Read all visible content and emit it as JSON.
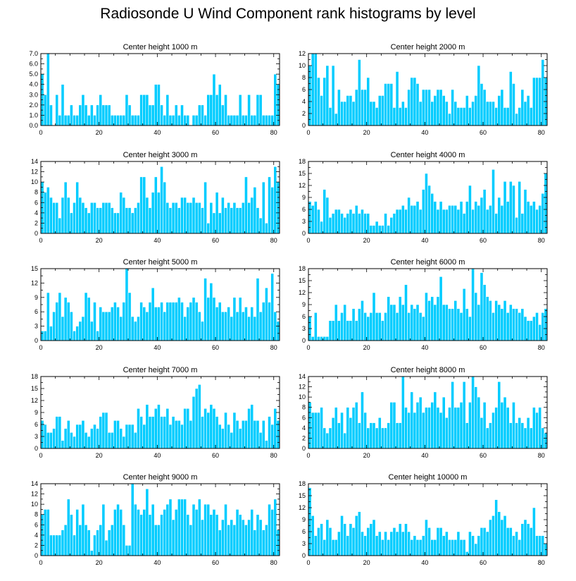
{
  "figure_title": "Radiosonde U Wind Component rank histograms by level",
  "colors": {
    "bar": "#00ccff",
    "axis": "#000000",
    "background": "#ffffff"
  },
  "chart_data": [
    {
      "type": "bar",
      "title": "Center height 1000 m",
      "xlim": [
        0,
        82
      ],
      "ylim": [
        0,
        7
      ],
      "xticks": [
        "0",
        "20",
        "40",
        "60",
        "80"
      ],
      "yticks": [
        "0.0",
        "1.0",
        "2.0",
        "3.0",
        "4.0",
        "5.0",
        "6.0",
        "7.0"
      ],
      "ytick_values": [
        0,
        1,
        2,
        3,
        4,
        5,
        6,
        7
      ],
      "values": [
        5,
        3,
        7,
        2,
        0,
        3,
        1,
        4,
        1,
        1,
        2,
        1,
        1,
        2,
        3,
        2,
        1,
        2,
        1,
        2,
        3,
        2,
        2,
        2,
        1,
        1,
        1,
        1,
        1,
        3,
        2,
        1,
        1,
        1,
        3,
        3,
        3,
        2,
        2,
        4,
        4,
        2,
        1,
        3,
        1,
        1,
        2,
        1,
        2,
        1,
        1,
        0,
        1,
        1,
        2,
        2,
        1,
        3,
        3,
        5,
        3,
        4,
        2,
        3,
        1,
        1,
        1,
        1,
        3,
        1,
        1,
        3,
        1,
        1,
        3,
        3,
        1,
        1,
        1,
        1,
        5,
        4
      ]
    },
    {
      "type": "bar",
      "title": "Center height 2000 m",
      "xlim": [
        0,
        82
      ],
      "ylim": [
        0,
        12
      ],
      "xticks": [
        "0",
        "20",
        "40",
        "60",
        "80"
      ],
      "yticks": [
        "0",
        "2",
        "4",
        "6",
        "8",
        "10",
        "12"
      ],
      "ytick_values": [
        0,
        2,
        4,
        6,
        8,
        10,
        12
      ],
      "values": [
        10,
        12,
        12,
        8,
        5,
        8,
        10,
        3,
        10,
        2,
        6,
        4,
        4,
        5,
        5,
        4,
        6,
        11,
        6,
        6,
        8,
        4,
        4,
        3,
        5,
        5,
        7,
        7,
        7,
        3,
        9,
        3,
        4,
        3,
        6,
        8,
        8,
        7,
        4,
        6,
        6,
        6,
        4,
        5,
        6,
        6,
        5,
        4,
        2,
        6,
        4,
        3,
        3,
        3,
        5,
        3,
        4,
        5,
        10,
        7,
        6,
        4,
        4,
        4,
        3,
        5,
        6,
        3,
        3,
        9,
        7,
        2,
        3,
        6,
        4,
        5,
        3,
        8,
        8,
        8,
        11,
        8
      ]
    },
    {
      "type": "bar",
      "title": "Center height 3000 m",
      "xlim": [
        0,
        82
      ],
      "ylim": [
        0,
        14
      ],
      "xticks": [
        "0",
        "20",
        "40",
        "60",
        "80"
      ],
      "yticks": [
        "0",
        "2",
        "4",
        "6",
        "8",
        "10",
        "12",
        "14"
      ],
      "ytick_values": [
        0,
        2,
        4,
        6,
        8,
        10,
        12,
        14
      ],
      "values": [
        10,
        8,
        9,
        7,
        6,
        6,
        3,
        7,
        10,
        7,
        4,
        6,
        10,
        7,
        6,
        5,
        4,
        6,
        6,
        5,
        5,
        6,
        6,
        6,
        5,
        4,
        4,
        8,
        7,
        5,
        5,
        4,
        5,
        6,
        11,
        11,
        7,
        5,
        8,
        11,
        8,
        13,
        10,
        6,
        5,
        6,
        6,
        5,
        7,
        7,
        6,
        6,
        7,
        6,
        6,
        5,
        10,
        2,
        6,
        4,
        8,
        4,
        7,
        5,
        6,
        5,
        6,
        5,
        5,
        6,
        11,
        6,
        7,
        9,
        5,
        3,
        10,
        2,
        11,
        9,
        13,
        10
      ]
    },
    {
      "type": "bar",
      "title": "Center height 4000 m",
      "xlim": [
        0,
        82
      ],
      "ylim": [
        0,
        18
      ],
      "xticks": [
        "0",
        "20",
        "40",
        "60",
        "80"
      ],
      "yticks": [
        "0",
        "3",
        "6",
        "9",
        "12",
        "15",
        "18"
      ],
      "ytick_values": [
        0,
        3,
        6,
        9,
        12,
        15,
        18
      ],
      "values": [
        8,
        7,
        8,
        6,
        3,
        11,
        9,
        4,
        5,
        6,
        6,
        5,
        4,
        5,
        6,
        5,
        7,
        5,
        6,
        5,
        5,
        2,
        2,
        3,
        2,
        2,
        5,
        2,
        4,
        5,
        6,
        6,
        7,
        6,
        9,
        7,
        7,
        8,
        6,
        11,
        15,
        12,
        10,
        8,
        6,
        8,
        6,
        6,
        7,
        7,
        7,
        6,
        8,
        5,
        8,
        12,
        6,
        8,
        7,
        9,
        11,
        6,
        7,
        16,
        5,
        9,
        7,
        13,
        8,
        13,
        12,
        4,
        13,
        5,
        11,
        8,
        7,
        8,
        6,
        7,
        10,
        15
      ]
    },
    {
      "type": "bar",
      "title": "Center height 5000 m",
      "xlim": [
        0,
        82
      ],
      "ylim": [
        0,
        15
      ],
      "xticks": [
        "0",
        "20",
        "40",
        "60",
        "80"
      ],
      "yticks": [
        "0",
        "3",
        "6",
        "9",
        "12",
        "15"
      ],
      "ytick_values": [
        0,
        3,
        6,
        9,
        12,
        15
      ],
      "values": [
        2,
        2,
        10,
        3,
        6,
        8,
        10,
        5,
        9,
        8,
        6,
        2,
        3,
        4,
        5,
        10,
        9,
        4,
        8,
        2,
        7,
        6,
        6,
        6,
        7,
        8,
        7,
        5,
        8,
        15,
        10,
        5,
        4,
        5,
        8,
        7,
        6,
        8,
        11,
        7,
        7,
        8,
        6,
        8,
        8,
        8,
        8,
        9,
        8,
        5,
        7,
        8,
        9,
        8,
        6,
        4,
        13,
        9,
        12,
        9,
        7,
        8,
        6,
        6,
        7,
        5,
        9,
        6,
        9,
        6,
        7,
        5,
        7,
        5,
        13,
        6,
        8,
        11,
        8,
        14,
        6,
        4
      ]
    },
    {
      "type": "bar",
      "title": "Center height 6000 m",
      "xlim": [
        0,
        82
      ],
      "ylim": [
        0,
        18
      ],
      "xticks": [
        "0",
        "20",
        "40",
        "60",
        "80"
      ],
      "yticks": [
        "0",
        "3",
        "6",
        "9",
        "12",
        "15",
        "18"
      ],
      "ytick_values": [
        0,
        3,
        6,
        9,
        12,
        15,
        18
      ],
      "values": [
        6,
        1,
        7,
        1,
        1,
        1,
        1,
        5,
        5,
        9,
        5,
        7,
        9,
        5,
        5,
        8,
        5,
        8,
        10,
        7,
        6,
        7,
        12,
        7,
        7,
        5,
        7,
        11,
        9,
        9,
        7,
        11,
        9,
        14,
        7,
        9,
        8,
        9,
        7,
        6,
        12,
        10,
        11,
        9,
        11,
        16,
        9,
        9,
        8,
        8,
        10,
        8,
        7,
        13,
        8,
        6,
        18,
        12,
        9,
        17,
        14,
        11,
        10,
        7,
        10,
        9,
        8,
        10,
        7,
        9,
        8,
        8,
        7,
        8,
        6,
        5,
        5,
        6,
        7,
        4,
        7,
        8
      ]
    },
    {
      "type": "bar",
      "title": "Center height 7000 m",
      "xlim": [
        0,
        82
      ],
      "ylim": [
        0,
        18
      ],
      "xticks": [
        "0",
        "20",
        "40",
        "60",
        "80"
      ],
      "yticks": [
        "0",
        "3",
        "6",
        "9",
        "12",
        "15",
        "18"
      ],
      "ytick_values": [
        0,
        3,
        6,
        9,
        12,
        15,
        18
      ],
      "values": [
        7,
        6,
        4,
        4,
        5,
        8,
        8,
        2,
        5,
        7,
        4,
        3,
        6,
        6,
        7,
        4,
        3,
        5,
        6,
        5,
        8,
        9,
        9,
        4,
        4,
        7,
        7,
        5,
        3,
        6,
        6,
        6,
        4,
        10,
        8,
        6,
        11,
        8,
        8,
        10,
        11,
        8,
        8,
        10,
        6,
        8,
        7,
        7,
        6,
        10,
        10,
        7,
        13,
        15,
        16,
        8,
        10,
        9,
        11,
        10,
        8,
        6,
        5,
        9,
        6,
        4,
        9,
        7,
        5,
        7,
        7,
        10,
        11,
        7,
        7,
        4,
        7,
        2,
        8,
        6,
        10,
        7
      ]
    },
    {
      "type": "bar",
      "title": "Center height 8000 m",
      "xlim": [
        0,
        82
      ],
      "ylim": [
        0,
        14
      ],
      "xticks": [
        "0",
        "20",
        "40",
        "60",
        "80"
      ],
      "yticks": [
        "0",
        "2",
        "4",
        "6",
        "8",
        "10",
        "12",
        "14"
      ],
      "ytick_values": [
        0,
        2,
        4,
        6,
        8,
        10,
        12,
        14
      ],
      "values": [
        9,
        7,
        7,
        7,
        8,
        4,
        3,
        4,
        6,
        8,
        5,
        7,
        3,
        8,
        6,
        8,
        9,
        5,
        11,
        7,
        4,
        5,
        5,
        4,
        6,
        4,
        4,
        5,
        9,
        9,
        5,
        5,
        14,
        8,
        7,
        11,
        7,
        9,
        10,
        7,
        8,
        8,
        9,
        11,
        8,
        7,
        10,
        6,
        8,
        13,
        8,
        8,
        9,
        13,
        5,
        9,
        14,
        12,
        10,
        6,
        9,
        4,
        5,
        7,
        8,
        13,
        9,
        10,
        8,
        5,
        9,
        5,
        6,
        5,
        4,
        6,
        4,
        8,
        7,
        8,
        4,
        3
      ]
    },
    {
      "type": "bar",
      "title": "Center height 9000 m",
      "xlim": [
        0,
        82
      ],
      "ylim": [
        0,
        14
      ],
      "xticks": [
        "0",
        "20",
        "40",
        "60",
        "80"
      ],
      "yticks": [
        "0",
        "2",
        "4",
        "6",
        "8",
        "10",
        "12",
        "14"
      ],
      "ytick_values": [
        0,
        2,
        4,
        6,
        8,
        10,
        12,
        14
      ],
      "values": [
        8,
        9,
        9,
        4,
        4,
        4,
        4,
        5,
        6,
        11,
        8,
        4,
        9,
        6,
        10,
        6,
        5,
        1,
        4,
        5,
        6,
        10,
        3,
        5,
        6,
        9,
        10,
        9,
        6,
        2,
        2,
        14,
        10,
        9,
        8,
        9,
        13,
        8,
        10,
        6,
        6,
        8,
        9,
        10,
        11,
        7,
        9,
        11,
        11,
        11,
        8,
        6,
        10,
        9,
        11,
        7,
        10,
        10,
        8,
        9,
        8,
        5,
        7,
        10,
        6,
        7,
        6,
        9,
        8,
        7,
        6,
        7,
        9,
        5,
        8,
        7,
        5,
        6,
        10,
        9,
        11,
        5
      ]
    },
    {
      "type": "bar",
      "title": "Center height 10000 m",
      "xlim": [
        0,
        82
      ],
      "ylim": [
        0,
        18
      ],
      "xticks": [
        "0",
        "20",
        "40",
        "60",
        "80"
      ],
      "yticks": [
        "0",
        "3",
        "6",
        "9",
        "12",
        "15",
        "18"
      ],
      "ytick_values": [
        0,
        3,
        6,
        9,
        12,
        15,
        18
      ],
      "values": [
        17,
        10,
        5,
        7,
        8,
        4,
        9,
        7,
        4,
        4,
        6,
        10,
        8,
        5,
        8,
        7,
        10,
        11,
        6,
        5,
        7,
        8,
        9,
        5,
        6,
        4,
        6,
        4,
        6,
        7,
        6,
        8,
        6,
        8,
        6,
        4,
        5,
        4,
        4,
        5,
        9,
        7,
        4,
        4,
        7,
        7,
        5,
        6,
        4,
        4,
        4,
        6,
        4,
        4,
        1,
        6,
        5,
        3,
        5,
        7,
        7,
        6,
        9,
        10,
        14,
        11,
        9,
        10,
        7,
        7,
        5,
        6,
        4,
        8,
        9,
        8,
        7,
        12,
        5,
        5,
        5,
        3
      ]
    }
  ]
}
